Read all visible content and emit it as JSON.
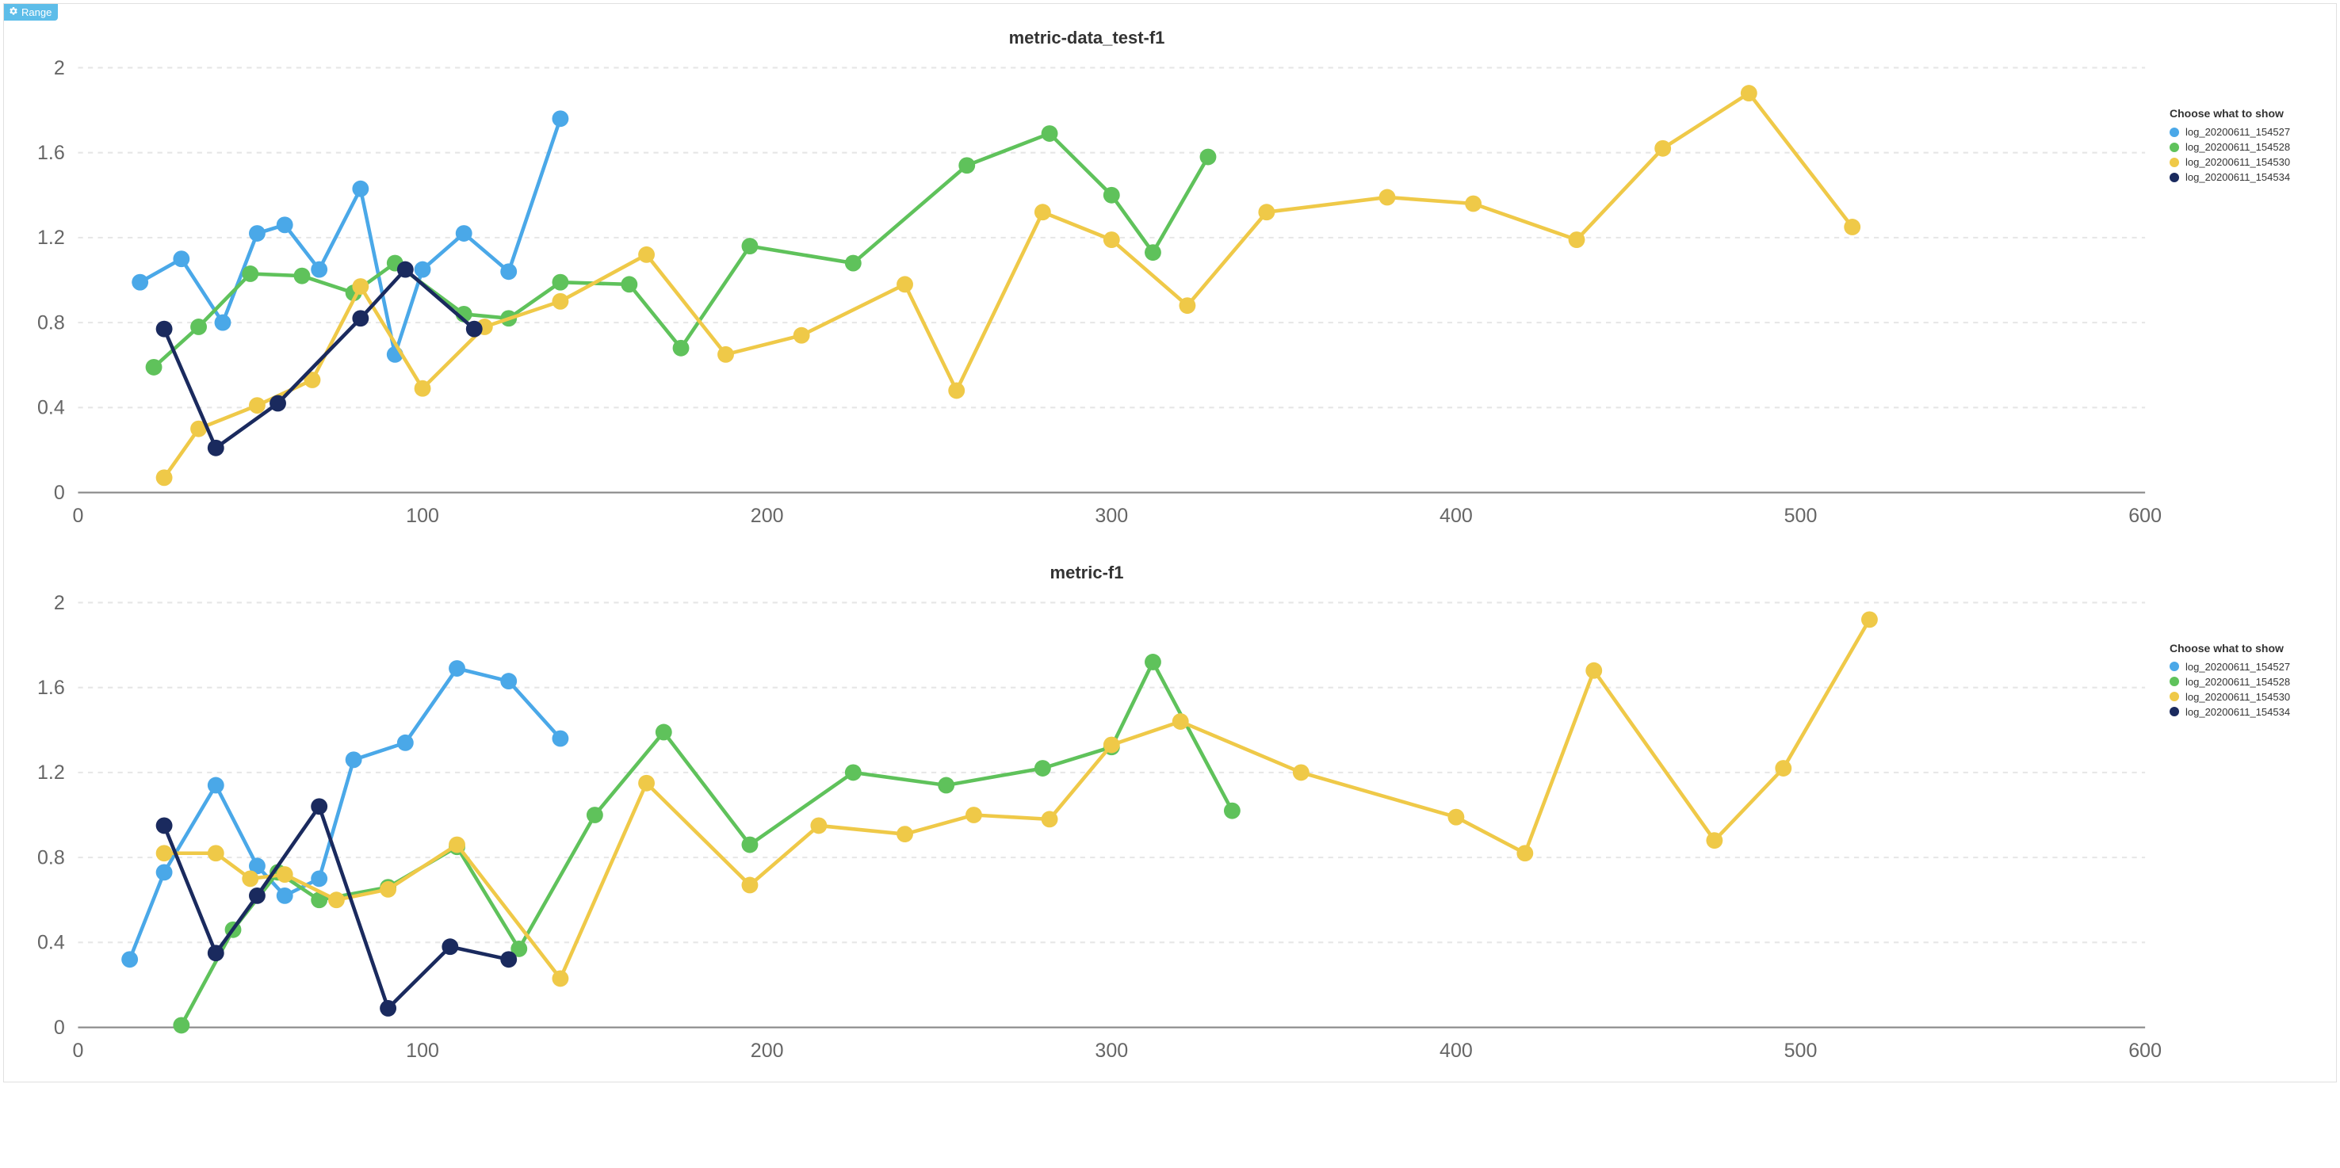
{
  "range_button": {
    "label": "Range"
  },
  "legend_title": "Choose what to show",
  "series_meta": [
    {
      "id": "s1",
      "label": "log_20200611_154527",
      "color": "#4aa8e8"
    },
    {
      "id": "s2",
      "label": "log_20200611_154528",
      "color": "#5fc25b"
    },
    {
      "id": "s3",
      "label": "log_20200611_154530",
      "color": "#efc948"
    },
    {
      "id": "s4",
      "label": "log_20200611_154534",
      "color": "#1a2a5e"
    }
  ],
  "charts": [
    {
      "id": "chart1",
      "title": "metric-data_test-f1",
      "type": "line",
      "xlim": [
        0,
        600
      ],
      "ylim": [
        0,
        2
      ],
      "xtick_step": 100,
      "ytick_step": 0.4,
      "background_color": "#ffffff",
      "grid_color": "#e6e6e6",
      "axis_color": "#888888",
      "tick_fontsize": 12,
      "title_fontsize": 22,
      "marker_radius": 5,
      "line_width": 2.2,
      "series": {
        "s1": {
          "x": [
            18,
            30,
            42,
            52,
            60,
            70,
            82,
            92,
            100,
            112,
            125,
            140
          ],
          "y": [
            0.99,
            1.1,
            0.8,
            1.22,
            1.26,
            1.05,
            1.43,
            0.65,
            1.05,
            1.22,
            1.04,
            1.76
          ]
        },
        "s2": {
          "x": [
            22,
            35,
            50,
            65,
            80,
            92,
            112,
            125,
            140,
            160,
            175,
            195,
            225,
            258,
            282,
            300,
            312,
            328
          ],
          "y": [
            0.59,
            0.78,
            1.03,
            1.02,
            0.94,
            1.08,
            0.84,
            0.82,
            0.99,
            0.98,
            0.68,
            1.16,
            1.08,
            1.54,
            1.69,
            1.4,
            1.13,
            1.58
          ]
        },
        "s3": {
          "x": [
            25,
            35,
            52,
            68,
            82,
            100,
            118,
            140,
            165,
            188,
            210,
            240,
            255,
            280,
            300,
            322,
            345,
            380,
            405,
            435,
            460,
            485,
            515
          ],
          "y": [
            0.07,
            0.3,
            0.41,
            0.53,
            0.97,
            0.49,
            0.78,
            0.9,
            1.12,
            0.65,
            0.74,
            0.98,
            0.48,
            1.32,
            1.19,
            0.88,
            1.32,
            1.39,
            1.36,
            1.19,
            1.62,
            1.88,
            1.25
          ]
        },
        "s4": {
          "x": [
            25,
            40,
            58,
            82,
            95,
            115
          ],
          "y": [
            0.77,
            0.21,
            0.42,
            0.82,
            1.05,
            0.77
          ]
        }
      }
    },
    {
      "id": "chart2",
      "title": "metric-f1",
      "type": "line",
      "xlim": [
        0,
        600
      ],
      "ylim": [
        0,
        2
      ],
      "xtick_step": 100,
      "ytick_step": 0.4,
      "background_color": "#ffffff",
      "grid_color": "#e6e6e6",
      "axis_color": "#888888",
      "tick_fontsize": 12,
      "title_fontsize": 22,
      "marker_radius": 5,
      "line_width": 2.2,
      "series": {
        "s1": {
          "x": [
            15,
            25,
            40,
            52,
            60,
            70,
            80,
            95,
            110,
            125,
            140
          ],
          "y": [
            0.32,
            0.73,
            1.14,
            0.76,
            0.62,
            0.7,
            1.26,
            1.34,
            1.69,
            1.63,
            1.36
          ]
        },
        "s2": {
          "x": [
            30,
            45,
            58,
            70,
            90,
            110,
            128,
            150,
            170,
            195,
            225,
            252,
            280,
            300,
            312,
            335
          ],
          "y": [
            0.01,
            0.46,
            0.73,
            0.6,
            0.66,
            0.85,
            0.37,
            1.0,
            1.39,
            0.86,
            1.2,
            1.14,
            1.22,
            1.32,
            1.72,
            1.02
          ]
        },
        "s3": {
          "x": [
            25,
            40,
            50,
            60,
            75,
            90,
            110,
            140,
            165,
            195,
            215,
            240,
            260,
            282,
            300,
            320,
            355,
            400,
            420,
            440,
            475,
            495,
            520
          ],
          "y": [
            0.82,
            0.82,
            0.7,
            0.72,
            0.6,
            0.65,
            0.86,
            0.23,
            1.15,
            0.67,
            0.95,
            0.91,
            1.0,
            0.98,
            1.33,
            1.44,
            1.2,
            0.99,
            0.82,
            1.68,
            0.88,
            1.22,
            1.92
          ]
        },
        "s4": {
          "x": [
            25,
            40,
            52,
            70,
            90,
            108,
            125
          ],
          "y": [
            0.95,
            0.35,
            0.62,
            1.04,
            0.09,
            0.38,
            0.32
          ]
        }
      }
    }
  ]
}
